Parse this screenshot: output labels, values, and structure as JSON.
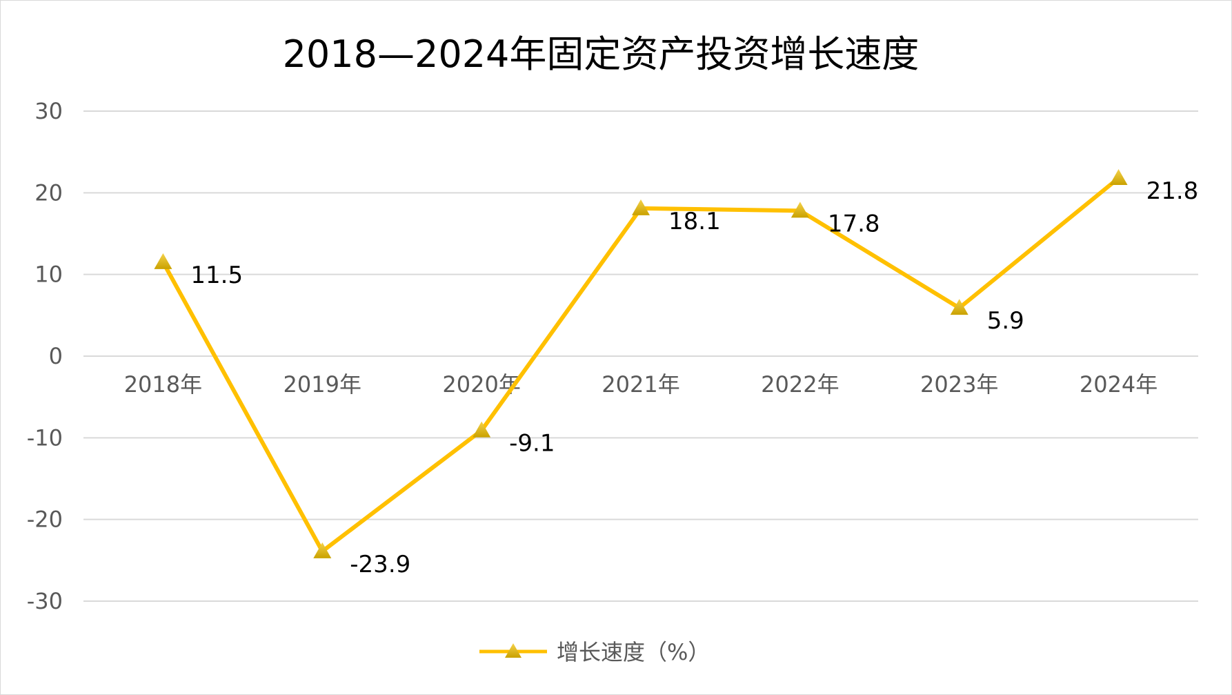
{
  "chart_data": {
    "type": "line",
    "title": "2018—2024年固定资产投资增长速度",
    "categories": [
      "2018年",
      "2019年",
      "2020年",
      "2021年",
      "2022年",
      "2023年",
      "2024年"
    ],
    "series": [
      {
        "name": "增长速度（%）",
        "values": [
          11.5,
          -23.9,
          -9.1,
          18.1,
          17.8,
          5.9,
          21.8
        ],
        "labels": [
          "11.5",
          "-23.9",
          "-9.1",
          "18.1",
          "17.8",
          "5.9",
          "21.8"
        ],
        "color": "#FFC000",
        "marker": "triangle"
      }
    ],
    "ylim": [
      -30,
      30
    ],
    "yticks": [
      30,
      20,
      10,
      0,
      -10,
      -20,
      -30
    ],
    "ytick_labels": [
      "30",
      "20",
      "10",
      "0",
      "-10",
      "-20",
      "-30"
    ],
    "grid": true,
    "gridColor": "#d9d9d9",
    "legend_position": "bottom"
  }
}
